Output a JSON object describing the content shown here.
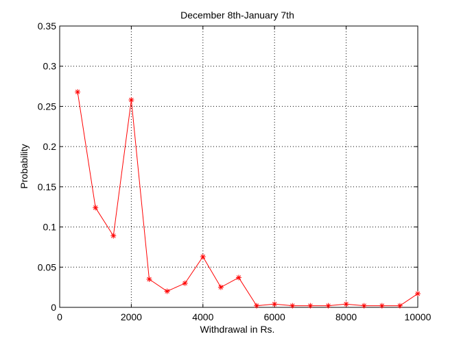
{
  "chart_data": {
    "type": "line",
    "title": "December 8th-January 7th",
    "xlabel": "Withdrawal in Rs.",
    "ylabel": "Probability",
    "xlim": [
      0,
      10000
    ],
    "ylim": [
      0,
      0.35
    ],
    "grid": true,
    "x_ticks": [
      0,
      2000,
      4000,
      6000,
      8000,
      10000
    ],
    "x_tick_labels": [
      "0",
      "2000",
      "4000",
      "6000",
      "8000",
      "10000"
    ],
    "y_ticks": [
      0,
      0.05,
      0.1,
      0.15,
      0.2,
      0.25,
      0.3,
      0.35
    ],
    "y_tick_labels": [
      "0",
      "0.05",
      "0.1",
      "0.15",
      "0.2",
      "0.25",
      "0.3",
      "0.35"
    ],
    "line_color": "#ff0000",
    "marker": "asterisk",
    "series": [
      {
        "x": [
          500,
          1000,
          1500,
          2000,
          2500,
          3000,
          3500,
          4000,
          4500,
          5000,
          5500,
          6000,
          6500,
          7000,
          7500,
          8000,
          8500,
          9000,
          9500,
          10000
        ],
        "values": [
          0.268,
          0.124,
          0.089,
          0.258,
          0.035,
          0.02,
          0.03,
          0.063,
          0.025,
          0.037,
          0.002,
          0.004,
          0.002,
          0.002,
          0.002,
          0.004,
          0.002,
          0.002,
          0.002,
          0.017
        ]
      }
    ]
  }
}
